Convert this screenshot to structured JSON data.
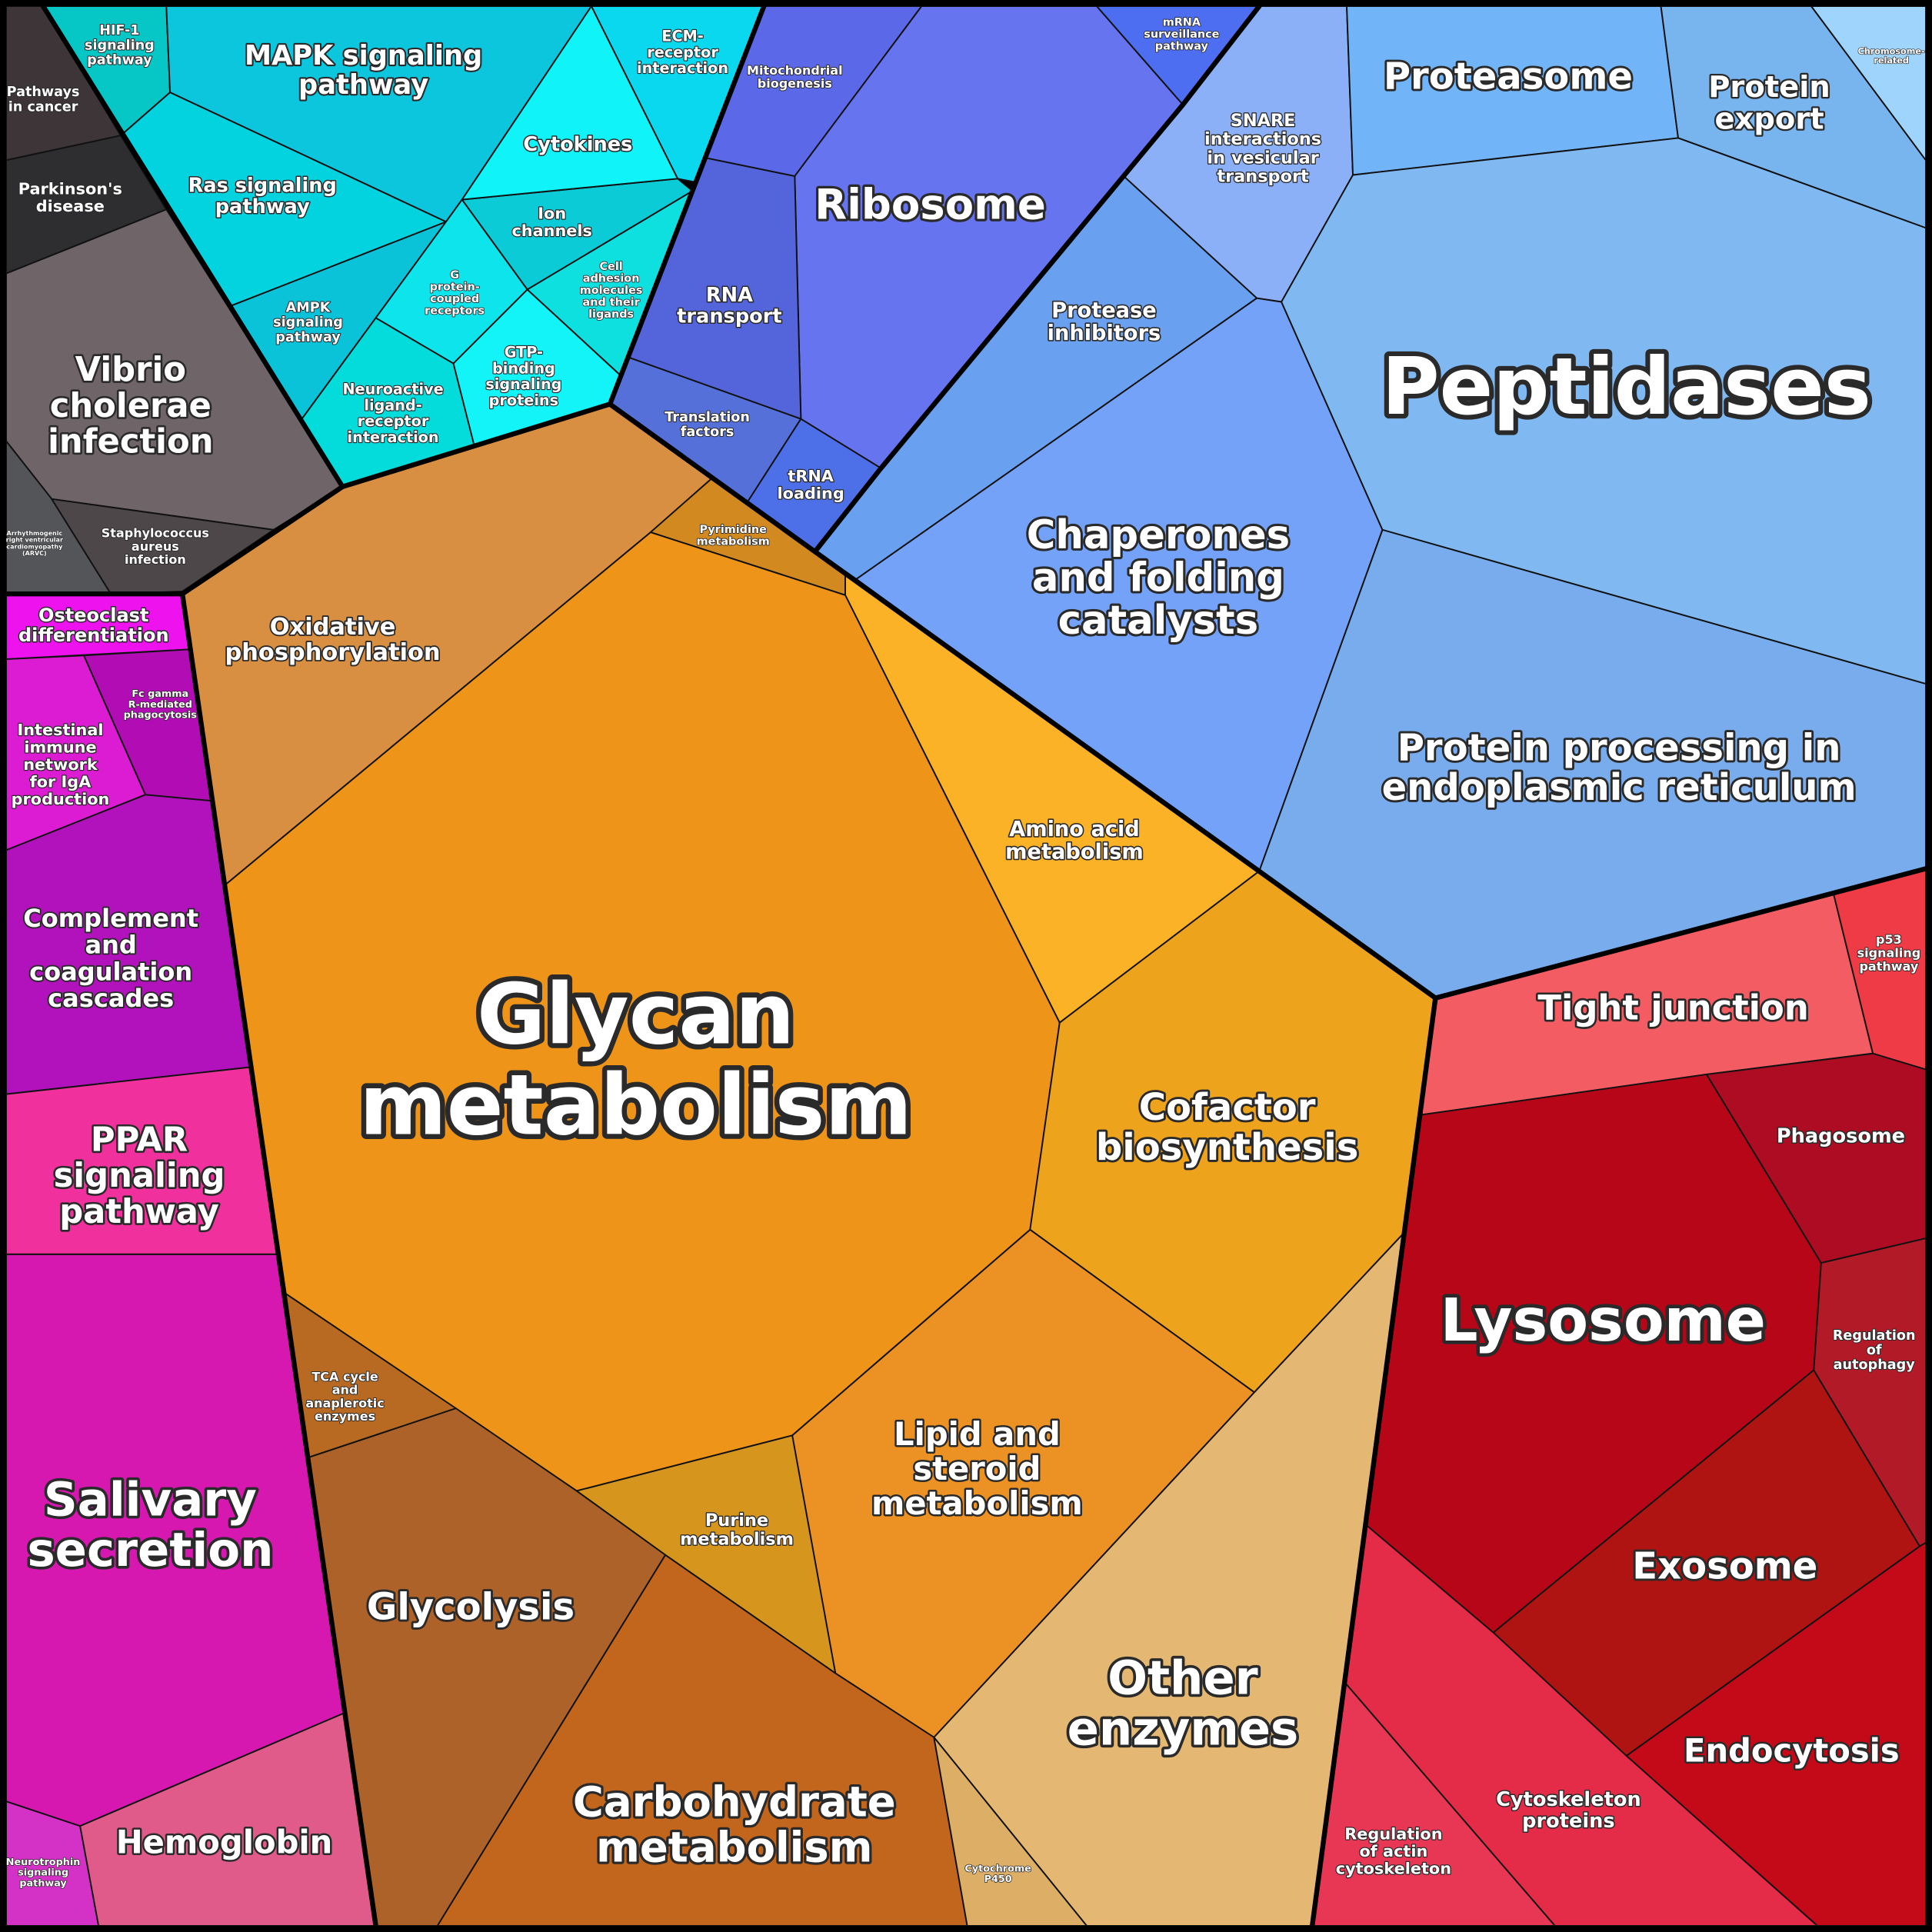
{
  "cells": [
    {
      "label": [
        "Pathways",
        "in cancer"
      ]
    },
    {
      "label": [
        "Parkinson's",
        "disease"
      ]
    },
    {
      "label": [
        "Vibrio",
        "cholerae",
        "infection"
      ]
    },
    {
      "label": [
        "Arrhythmogenic",
        "right ventricular",
        "cardiomyopathy",
        "(ARVC)"
      ]
    },
    {
      "label": [
        "Staphylococcus",
        "aureus",
        "infection"
      ]
    },
    {
      "label": [
        "HIF-1",
        "signaling",
        "pathway"
      ]
    },
    {
      "label": [
        "MAPK signaling",
        "pathway"
      ]
    },
    {
      "label": [
        "Ras signaling",
        "pathway"
      ]
    },
    {
      "label": [
        "AMPK",
        "signaling",
        "pathway"
      ]
    },
    {
      "label": [
        "Neuroactive",
        "ligand-",
        "receptor",
        "interaction"
      ]
    },
    {
      "label": [
        "G",
        "protein-",
        "coupled",
        "receptors"
      ]
    },
    {
      "label": [
        "GTP-",
        "binding",
        "signaling",
        "proteins"
      ]
    },
    {
      "label": [
        "Ion",
        "channels"
      ]
    },
    {
      "label": [
        "Cell",
        "adhesion",
        "molecules",
        "and their",
        "ligands"
      ]
    },
    {
      "label": [
        "Cytokines"
      ]
    },
    {
      "label": [
        "ECM-",
        "receptor",
        "interaction"
      ]
    },
    {
      "label": [
        "Mitochondrial",
        "biogenesis"
      ]
    },
    {
      "label": [
        "mRNA",
        "surveillance",
        "pathway"
      ]
    },
    {
      "label": [
        "Ribosome"
      ]
    },
    {
      "label": [
        "RNA",
        "transport"
      ]
    },
    {
      "label": [
        "Translation",
        "factors"
      ]
    },
    {
      "label": [
        "tRNA",
        "loading"
      ]
    },
    {
      "label": [
        "SNARE",
        "interactions",
        "in vesicular",
        "transport"
      ]
    },
    {
      "label": [
        "Proteasome"
      ]
    },
    {
      "label": [
        "Protein",
        "export"
      ]
    },
    {
      "label": [
        "Chromosome-",
        "related"
      ]
    },
    {
      "label": [
        "Protease",
        "inhibitors"
      ]
    },
    {
      "label": [
        "Chaperones",
        "and folding",
        "catalysts"
      ]
    },
    {
      "label": [
        "Peptidases"
      ]
    },
    {
      "label": [
        "Protein processing in",
        "endoplasmic reticulum"
      ]
    },
    {
      "label": [
        "Oxidative",
        "phosphorylation"
      ]
    },
    {
      "label": [
        "Pyrimidine",
        "metabolism"
      ]
    },
    {
      "label": [
        "Amino acid",
        "metabolism"
      ]
    },
    {
      "label": [
        "Glycan",
        "metabolism"
      ]
    },
    {
      "label": [
        "Cofactor",
        "biosynthesis"
      ]
    },
    {
      "label": [
        "Lipid and",
        "steroid",
        "metabolism"
      ]
    },
    {
      "label": [
        "Purine",
        "metabolism"
      ]
    },
    {
      "label": [
        "TCA cycle",
        "and",
        "anaplerotic",
        "enzymes"
      ]
    },
    {
      "label": [
        "Glycolysis"
      ]
    },
    {
      "label": [
        "Carbohydrate",
        "metabolism"
      ]
    },
    {
      "label": [
        "Other",
        "enzymes"
      ]
    },
    {
      "label": [
        "Cytochrome",
        "P450"
      ]
    },
    {
      "label": [
        "Osteoclast",
        "differentiation"
      ]
    },
    {
      "label": [
        "Fc gamma",
        "R-mediated",
        "phagocytosis"
      ]
    },
    {
      "label": [
        "Intestinal",
        "immune",
        "network",
        "for IgA",
        "production"
      ]
    },
    {
      "label": [
        "Complement",
        "and",
        "coagulation",
        "cascades"
      ]
    },
    {
      "label": [
        "PPAR",
        "signaling",
        "pathway"
      ]
    },
    {
      "label": [
        "Salivary",
        "secretion"
      ]
    },
    {
      "label": [
        "Neurotrophin",
        "signaling",
        "pathway"
      ]
    },
    {
      "label": [
        "Hemoglobin"
      ]
    },
    {
      "label": [
        "Tight junction"
      ]
    },
    {
      "label": [
        "p53",
        "signaling",
        "pathway"
      ]
    },
    {
      "label": [
        "Phagosome"
      ]
    },
    {
      "label": [
        "Regulation",
        "of",
        "autophagy"
      ]
    },
    {
      "label": [
        "Lysosome"
      ]
    },
    {
      "label": [
        "Exosome"
      ]
    },
    {
      "label": [
        "Endocytosis"
      ]
    },
    {
      "label": [
        "Cytoskeleton",
        "proteins"
      ]
    },
    {
      "label": [
        "Regulation",
        "of actin",
        "cytoskeleton"
      ]
    }
  ]
}
